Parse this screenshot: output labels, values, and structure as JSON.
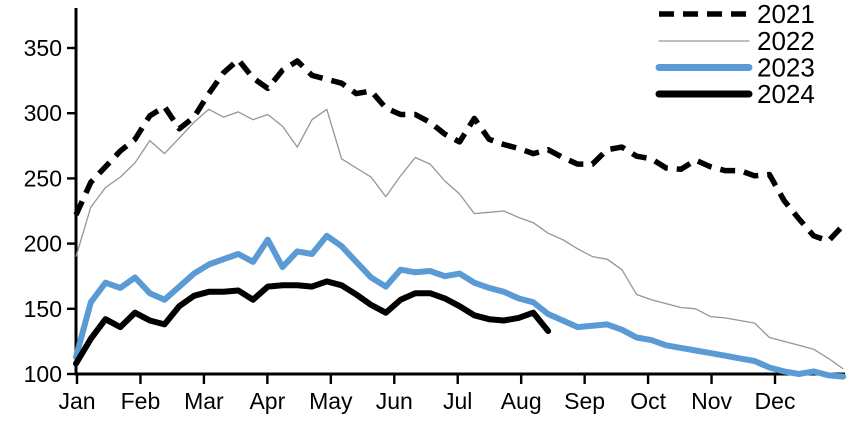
{
  "chart_data": {
    "type": "line",
    "title": "",
    "x_unit": "week-of-year",
    "x_axis": {
      "tick_labels": [
        "Jan",
        "Feb",
        "Mar",
        "Apr",
        "May",
        "Jun",
        "Jul",
        "Aug",
        "Sep",
        "Oct",
        "Nov",
        "Dec"
      ]
    },
    "y_axis": {
      "ticks": [
        100,
        150,
        200,
        250,
        300,
        350
      ],
      "ylim": [
        100,
        350
      ]
    },
    "grid": false,
    "legend_position": "top-right",
    "series": [
      {
        "name": "2021",
        "color": "#000000",
        "style": "dashed",
        "values": [
          222,
          247,
          259,
          271,
          280,
          298,
          305,
          288,
          297,
          315,
          331,
          341,
          327,
          319,
          333,
          340,
          329,
          326,
          323,
          315,
          317,
          304,
          299,
          299,
          293,
          284,
          278,
          296,
          280,
          276,
          273,
          269,
          272,
          266,
          261,
          261,
          272,
          274,
          267,
          265,
          258,
          257,
          264,
          259,
          256,
          256,
          252,
          253,
          233,
          219,
          206,
          202,
          214
        ]
      },
      {
        "name": "2022",
        "color": "#969696",
        "style": "thin-solid",
        "values": [
          190,
          228,
          243,
          251,
          262,
          279,
          269,
          281,
          293,
          303,
          297,
          301,
          295,
          299,
          290,
          274,
          295,
          303,
          265,
          258,
          251,
          236,
          252,
          266,
          261,
          248,
          238,
          223,
          224,
          225,
          220,
          216,
          208,
          203,
          196,
          190,
          188,
          180,
          161,
          157,
          154,
          151,
          150,
          144,
          143,
          141,
          139,
          128,
          125,
          122,
          119,
          112,
          104
        ]
      },
      {
        "name": "2023",
        "color": "#5B9BD5",
        "style": "thick-solid",
        "values": [
          113,
          155,
          170,
          166,
          174,
          162,
          157,
          167,
          177,
          184,
          188,
          192,
          186,
          203,
          182,
          194,
          192,
          206,
          198,
          186,
          174,
          167,
          180,
          178,
          179,
          175,
          177,
          170,
          166,
          163,
          158,
          155,
          146,
          141,
          136,
          137,
          138,
          134,
          128,
          126,
          122,
          120,
          118,
          116,
          114,
          112,
          110,
          105,
          102,
          100,
          102,
          99,
          98
        ]
      },
      {
        "name": "2024",
        "color": "#000000",
        "style": "thick-solid",
        "values": [
          108,
          127,
          142,
          136,
          147,
          141,
          138,
          152,
          160,
          163,
          163,
          164,
          157,
          167,
          168,
          168,
          167,
          171,
          168,
          161,
          153,
          147,
          157,
          162,
          162,
          158,
          152,
          145,
          142,
          141,
          143,
          147,
          133
        ]
      }
    ]
  }
}
